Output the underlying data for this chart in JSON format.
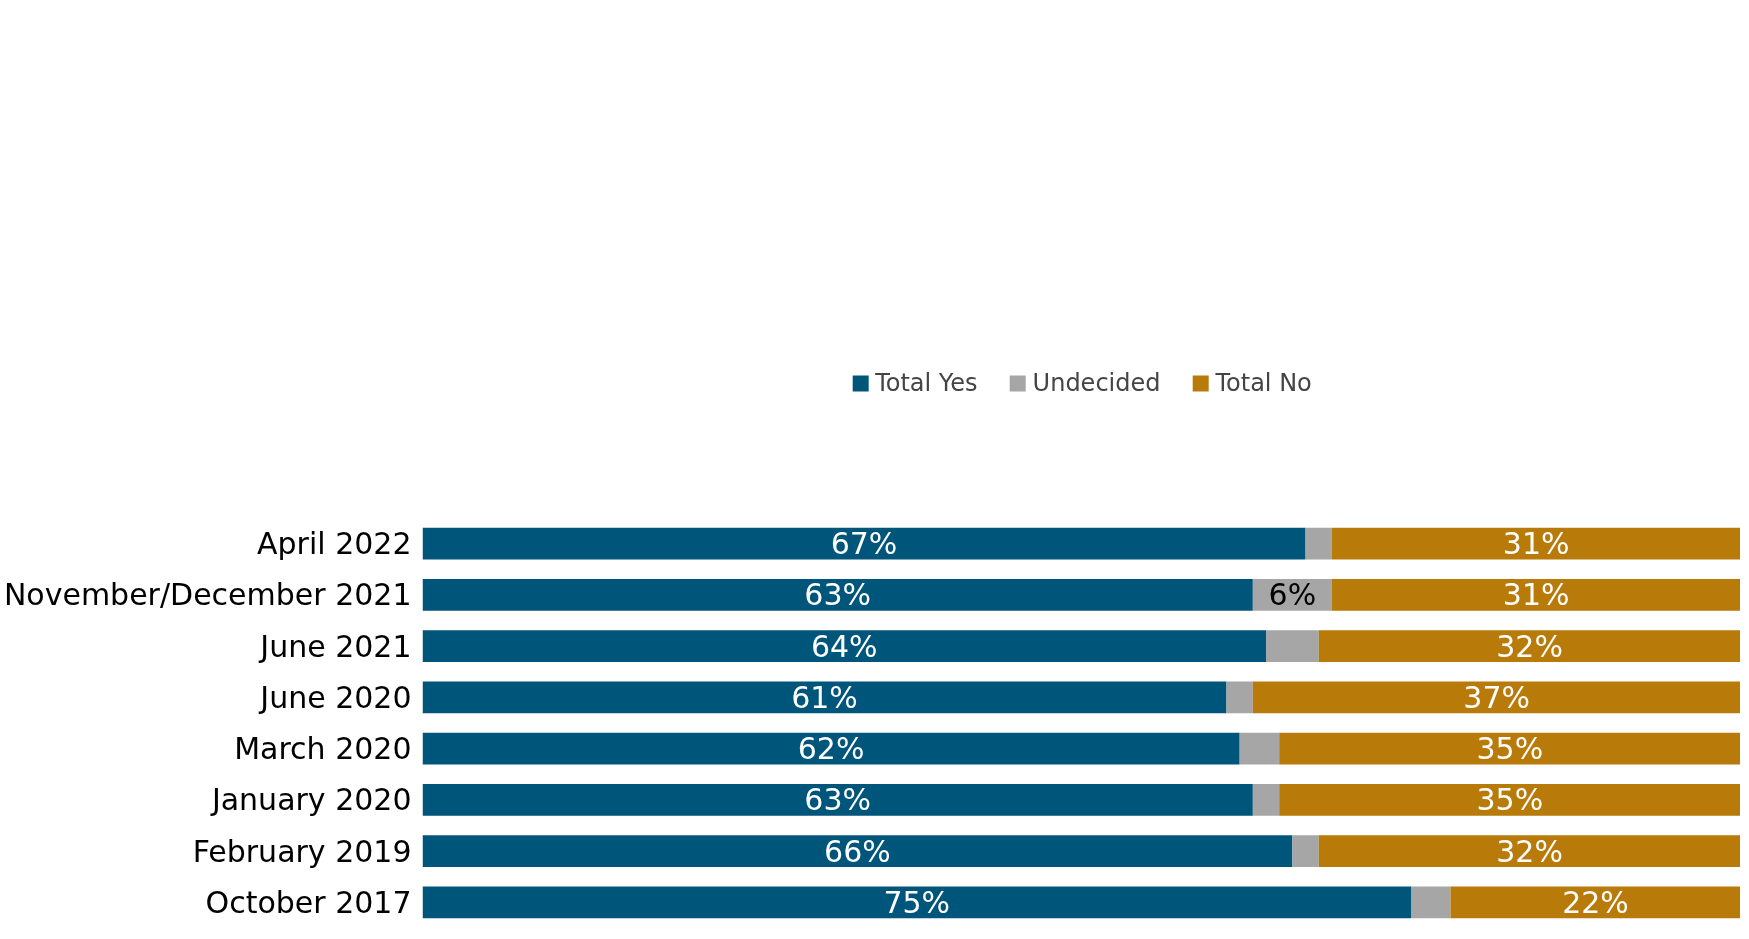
{
  "chart_data": {
    "type": "bar",
    "orientation": "horizontal",
    "stacked": true,
    "categories": [
      "April 2022",
      "November/December 2021",
      "June 2021",
      "June 2020",
      "March 2020",
      "January 2020",
      "February 2019",
      "October 2017"
    ],
    "series": [
      {
        "name": "Total Yes",
        "color": "#00557a",
        "values": [
          67,
          63,
          64,
          61,
          62,
          63,
          66,
          75
        ],
        "value_labels": [
          "67%",
          "63%",
          "64%",
          "61%",
          "62%",
          "63%",
          "66%",
          "75%"
        ]
      },
      {
        "name": "Undecided",
        "color": "#a6a6a6",
        "values": [
          2,
          6,
          4,
          2,
          3,
          2,
          2,
          3
        ],
        "value_labels": [
          null,
          "6%",
          null,
          null,
          null,
          null,
          null,
          null
        ]
      },
      {
        "name": "Total No",
        "color": "#b87a08",
        "values": [
          31,
          31,
          32,
          37,
          35,
          35,
          32,
          22
        ],
        "value_labels": [
          "31%",
          "31%",
          "32%",
          "37%",
          "35%",
          "35%",
          "32%",
          "22%"
        ]
      }
    ],
    "xlim": [
      0,
      100
    ],
    "tick_labels": "y",
    "grid": false,
    "legend": "top"
  }
}
